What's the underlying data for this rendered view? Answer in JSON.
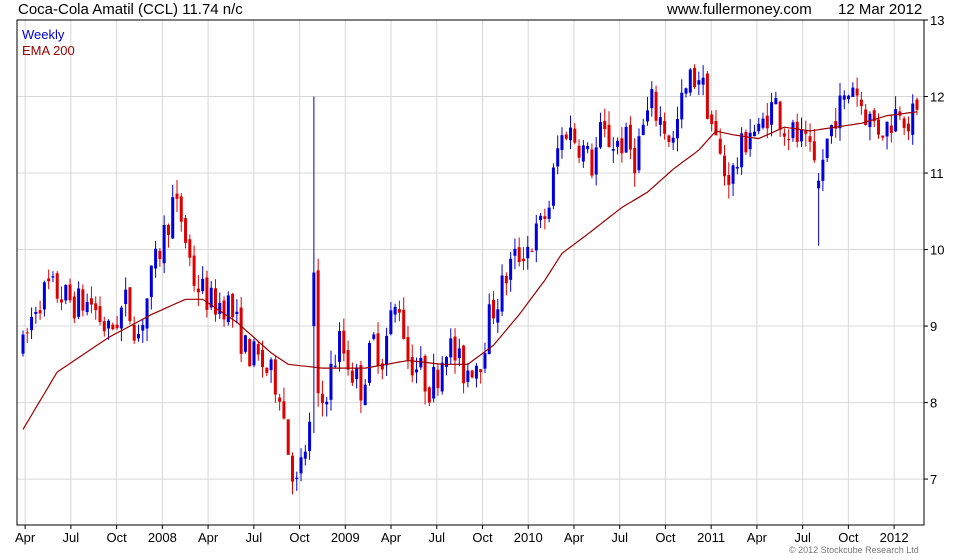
{
  "header": {
    "title": "Coca-Cola Amatil (CCL) 11.74 n/c",
    "source": "www.fullermoney.com",
    "date": "12 Mar 2012"
  },
  "legend": {
    "weekly": "Weekly",
    "ema": "EMA 200"
  },
  "copyright": "© 2012 Stockcube Research Ltd",
  "colors": {
    "up": "#0000dd",
    "down": "#dd0000",
    "ema": "#990000",
    "grid": "#d8d8d8",
    "axis": "#000000"
  },
  "chart_data": {
    "type": "candlestick",
    "ylim": [
      6.4,
      13
    ],
    "yticks": [
      7,
      8,
      9,
      10,
      11,
      12,
      13
    ],
    "xlabels": [
      "Apr",
      "Jul",
      "Oct",
      "2008",
      "Apr",
      "Jul",
      "Oct",
      "2009",
      "Apr",
      "Jul",
      "Oct",
      "2010",
      "Apr",
      "Jul",
      "Oct",
      "2011",
      "Apr",
      "Jul",
      "Oct",
      "2012"
    ],
    "grid": true,
    "price_anchors": [
      [
        0,
        8.7
      ],
      [
        3,
        9.3
      ],
      [
        6,
        9.5
      ],
      [
        12,
        9.3
      ],
      [
        16,
        9.3
      ],
      [
        20,
        8.9
      ],
      [
        24,
        9.3
      ],
      [
        27,
        8.9
      ],
      [
        30,
        9.6
      ],
      [
        35,
        10.6
      ],
      [
        37,
        10.4
      ],
      [
        40,
        9.6
      ],
      [
        44,
        9.3
      ],
      [
        48,
        9.3
      ],
      [
        52,
        8.7
      ],
      [
        56,
        8.5
      ],
      [
        60,
        8.2
      ],
      [
        62,
        7.4
      ],
      [
        64,
        6.9
      ],
      [
        68,
        7.9
      ],
      [
        70,
        8.0
      ],
      [
        74,
        8.8
      ],
      [
        77,
        8.4
      ],
      [
        79,
        8.2
      ],
      [
        82,
        8.8
      ],
      [
        84,
        8.6
      ],
      [
        86,
        9.1
      ],
      [
        88,
        9.3
      ],
      [
        90,
        8.6
      ],
      [
        93,
        8.4
      ],
      [
        95,
        8.2
      ],
      [
        97,
        8.4
      ],
      [
        99,
        8.8
      ],
      [
        101,
        8.6
      ],
      [
        103,
        8.4
      ],
      [
        105,
        8.5
      ],
      [
        107,
        8.6
      ],
      [
        109,
        9.1
      ],
      [
        112,
        9.5
      ],
      [
        114,
        9.8
      ],
      [
        117,
        10.0
      ],
      [
        119,
        10.1
      ],
      [
        121,
        10.3
      ],
      [
        123,
        10.6
      ],
      [
        125,
        11.3
      ],
      [
        127,
        11.6
      ],
      [
        130,
        11.4
      ],
      [
        133,
        11.1
      ],
      [
        135,
        11.5
      ],
      [
        138,
        11.4
      ],
      [
        141,
        11.4
      ],
      [
        143,
        11.2
      ],
      [
        145,
        11.6
      ],
      [
        147,
        11.9
      ],
      [
        150,
        11.6
      ],
      [
        152,
        11.4
      ],
      [
        154,
        11.9
      ],
      [
        156,
        12.2
      ],
      [
        158,
        12.3
      ],
      [
        160,
        11.9
      ],
      [
        162,
        11.4
      ],
      [
        164,
        11.0
      ],
      [
        166,
        11.0
      ],
      [
        168,
        11.3
      ],
      [
        170,
        11.6
      ],
      [
        172,
        11.5
      ],
      [
        174,
        11.8
      ],
      [
        176,
        11.9
      ],
      [
        178,
        11.6
      ],
      [
        180,
        11.5
      ],
      [
        182,
        11.4
      ],
      [
        184,
        11.2
      ],
      [
        186,
        11.0
      ],
      [
        188,
        11.4
      ],
      [
        190,
        11.8
      ],
      [
        192,
        11.9
      ],
      [
        194,
        12.2
      ],
      [
        196,
        11.9
      ],
      [
        198,
        11.7
      ],
      [
        200,
        11.6
      ],
      [
        202,
        11.6
      ],
      [
        205,
        11.9
      ],
      [
        207,
        11.7
      ],
      [
        209,
        11.74
      ]
    ],
    "ema_anchors": [
      [
        0,
        7.65
      ],
      [
        8,
        8.4
      ],
      [
        20,
        8.85
      ],
      [
        30,
        9.15
      ],
      [
        38,
        9.35
      ],
      [
        42,
        9.35
      ],
      [
        50,
        9.05
      ],
      [
        58,
        8.65
      ],
      [
        62,
        8.5
      ],
      [
        70,
        8.45
      ],
      [
        80,
        8.45
      ],
      [
        90,
        8.55
      ],
      [
        98,
        8.5
      ],
      [
        104,
        8.5
      ],
      [
        110,
        8.75
      ],
      [
        116,
        9.15
      ],
      [
        122,
        9.6
      ],
      [
        126,
        9.95
      ],
      [
        132,
        10.2
      ],
      [
        140,
        10.55
      ],
      [
        146,
        10.75
      ],
      [
        152,
        11.05
      ],
      [
        158,
        11.3
      ],
      [
        162,
        11.55
      ],
      [
        166,
        11.5
      ],
      [
        172,
        11.45
      ],
      [
        178,
        11.6
      ],
      [
        184,
        11.55
      ],
      [
        190,
        11.6
      ],
      [
        196,
        11.65
      ],
      [
        202,
        11.75
      ],
      [
        209,
        11.8
      ]
    ],
    "spikes": [
      {
        "index": 68,
        "high": 12.0,
        "low": 7.6,
        "open": 9.0,
        "close": 9.7
      },
      {
        "index": 186,
        "high": 11.0,
        "low": 10.05,
        "open": 10.8,
        "close": 10.9
      }
    ]
  }
}
